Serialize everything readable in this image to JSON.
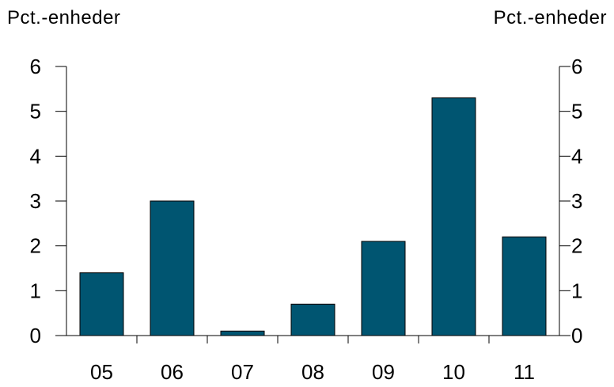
{
  "chart_data": {
    "type": "bar",
    "y_unit_left": "Pct.-enheder",
    "y_unit_right": "Pct.-enheder",
    "categories": [
      "05",
      "06",
      "07",
      "08",
      "09",
      "10",
      "11"
    ],
    "values": [
      1.4,
      3.0,
      0.1,
      0.7,
      2.1,
      5.3,
      2.2
    ],
    "ylim": [
      0,
      6
    ],
    "yticks": [
      0,
      1,
      2,
      3,
      4,
      5,
      6
    ],
    "grid": false,
    "bar_color": "#005571",
    "bar_outline": "#000000"
  }
}
